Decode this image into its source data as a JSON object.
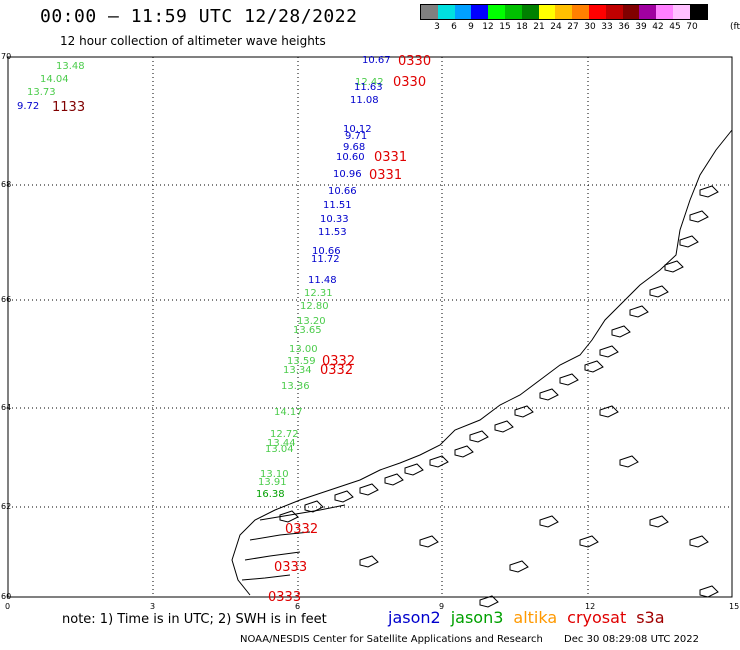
{
  "title": "00:00 – 11:59 UTC 12/28/2022",
  "subtitle": "12 hour collection of altimeter wave heights",
  "colorbar": {
    "swatches": [
      "#808080",
      "#00e0e0",
      "#00a0ff",
      "#0000ff",
      "#00ff00",
      "#00c000",
      "#008000",
      "#ffff00",
      "#ffc000",
      "#ff8000",
      "#ff0000",
      "#c00000",
      "#800000",
      "#a000a0",
      "#ff80ff",
      "#ffc0ff",
      "#000000"
    ],
    "labels": [
      "3",
      "6",
      "9",
      "12",
      "15",
      "18",
      "21",
      "24",
      "27",
      "30",
      "33",
      "36",
      "39",
      "42",
      "45",
      "70"
    ],
    "unit": "(ft)"
  },
  "axes": {
    "lat_ticks": [
      "70",
      "68",
      "66",
      "64",
      "62",
      "60"
    ],
    "lon_ticks": [
      "0",
      "3",
      "6",
      "9",
      "12",
      "15"
    ]
  },
  "wave_labels": [
    {
      "text": "13.48",
      "color": "#4ccc4c"
    },
    {
      "text": "14.04",
      "color": "#4ccc4c"
    },
    {
      "text": "13.73",
      "color": "#4ccc4c"
    },
    {
      "text": "9.72",
      "color": "#0000cc"
    },
    {
      "text": "10.67",
      "color": "#0000cc"
    },
    {
      "text": "12.42",
      "color": "#4ccc4c"
    },
    {
      "text": "11.63",
      "color": "#0000cc"
    },
    {
      "text": "11.08",
      "color": "#0000cc"
    },
    {
      "text": "10.12",
      "color": "#0000cc"
    },
    {
      "text": "9.71",
      "color": "#0000cc"
    },
    {
      "text": "9.68",
      "color": "#0000cc"
    },
    {
      "text": "10.60",
      "color": "#0000cc"
    },
    {
      "text": "10.96",
      "color": "#0000cc"
    },
    {
      "text": "10.66",
      "color": "#0000cc"
    },
    {
      "text": "11.51",
      "color": "#0000cc"
    },
    {
      "text": "10.33",
      "color": "#0000cc"
    },
    {
      "text": "11.53",
      "color": "#0000cc"
    },
    {
      "text": "10.66",
      "color": "#0000cc"
    },
    {
      "text": "11.72",
      "color": "#0000cc"
    },
    {
      "text": "11.48",
      "color": "#0000cc"
    },
    {
      "text": "12.31",
      "color": "#4ccc4c"
    },
    {
      "text": "12.80",
      "color": "#4ccc4c"
    },
    {
      "text": "13.20",
      "color": "#4ccc4c"
    },
    {
      "text": "13.65",
      "color": "#4ccc4c"
    },
    {
      "text": "13.00",
      "color": "#4ccc4c"
    },
    {
      "text": "13.59",
      "color": "#4ccc4c"
    },
    {
      "text": "13.34",
      "color": "#4ccc4c"
    },
    {
      "text": "13.36",
      "color": "#4ccc4c"
    },
    {
      "text": "14.17",
      "color": "#4ccc4c"
    },
    {
      "text": "12.72",
      "color": "#4ccc4c"
    },
    {
      "text": "13.44",
      "color": "#4ccc4c"
    },
    {
      "text": "13.04",
      "color": "#4ccc4c"
    },
    {
      "text": "13.10",
      "color": "#4ccc4c"
    },
    {
      "text": "13.91",
      "color": "#4ccc4c"
    },
    {
      "text": "16.38",
      "color": "#00a000"
    }
  ],
  "time_labels": [
    {
      "text": "1133",
      "color": "#800000"
    },
    {
      "text": "0330",
      "color": "#e00000"
    },
    {
      "text": "0330",
      "color": "#e00000"
    },
    {
      "text": "0331",
      "color": "#e00000"
    },
    {
      "text": "0331",
      "color": "#e00000"
    },
    {
      "text": "0332",
      "color": "#e00000"
    },
    {
      "text": "0332",
      "color": "#e00000"
    },
    {
      "text": "0332",
      "color": "#e00000"
    },
    {
      "text": "0333",
      "color": "#e00000"
    },
    {
      "text": "0333",
      "color": "#e00000"
    }
  ],
  "note": "note:  1) Time is in UTC;  2) SWH is in feet",
  "satellites": [
    {
      "name": "jason2",
      "color": "#0000cc"
    },
    {
      "name": "jason3",
      "color": "#00a000"
    },
    {
      "name": "altika",
      "color": "#ff9900"
    },
    {
      "name": "cryosat",
      "color": "#e00000"
    },
    {
      "name": "s3a",
      "color": "#a00000"
    }
  ],
  "footer_left": "NOAA/NESDIS Center for Satellite Applications and Research",
  "footer_right": "Dec 30 08:29:08 UTC 2022"
}
